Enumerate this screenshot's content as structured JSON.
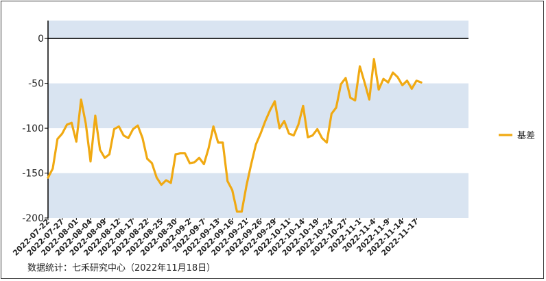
{
  "chart_data": {
    "type": "line",
    "ylim": [
      -200,
      20
    ],
    "yticks": [
      0,
      -50,
      -100,
      -150,
      -200
    ],
    "band_color": "#d9e4f1",
    "line_color": "#f0a912",
    "zero_line_color": "#000000",
    "legend_position": "right",
    "x_tick_labels": [
      "2022-07-22",
      "2022-07-27",
      "2022-08-01",
      "2022-08-04",
      "2022-08-09",
      "2022-08-12",
      "2022-08-17",
      "2022-08-22",
      "2022-08-25",
      "2022-08-30",
      "2022-09-2",
      "2022-09-7",
      "2022-09-13",
      "2022-09-16",
      "2022-09-21",
      "2022-09-26",
      "2022-09-29",
      "2022-10-11",
      "2022-10-14",
      "2022-10-19",
      "2022-10-24",
      "2022-10-27",
      "2022-11-1",
      "2022-11-4",
      "2022-11-9",
      "2022-11-14",
      "2022-11-17"
    ],
    "series": [
      {
        "name": "基差",
        "values": [
          -155,
          -145,
          -112,
          -106,
          -96,
          -94,
          -115,
          -68,
          -95,
          -137,
          -86,
          -124,
          -133,
          -129,
          -101,
          -98,
          -108,
          -111,
          -101,
          -97,
          -111,
          -134,
          -139,
          -155,
          -163,
          -158,
          -161,
          -129,
          -128,
          -128,
          -139,
          -138,
          -133,
          -140,
          -122,
          -98,
          -116,
          -116,
          -159,
          -169,
          -193,
          -193,
          -164,
          -140,
          -118,
          -106,
          -92,
          -80,
          -70,
          -100,
          -92,
          -106,
          -108,
          -96,
          -75,
          -110,
          -108,
          -101,
          -111,
          -116,
          -84,
          -77,
          -51,
          -44,
          -66,
          -69,
          -31,
          -49,
          -68,
          -23,
          -57,
          -45,
          -49,
          -38,
          -43,
          -52,
          -47,
          -56,
          -47,
          -49
        ]
      }
    ],
    "source_note": "数据统计：七禾研究中心（2022年11月18日）"
  }
}
